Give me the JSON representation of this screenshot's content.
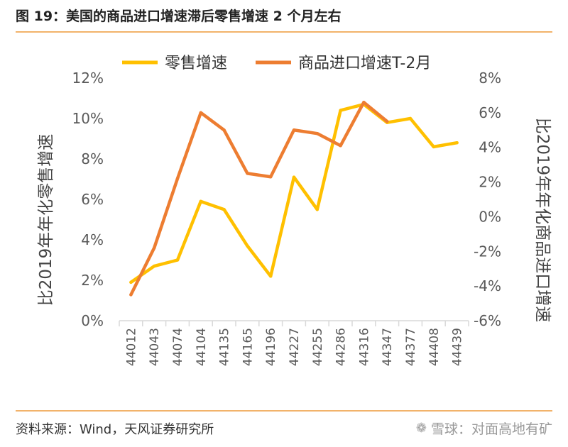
{
  "figure": {
    "title": "图 19：美国的商品进口增速滞后零售增速 2 个月左右",
    "source": "资料来源：Wind，天风证券研究所",
    "watermark_text": "雪球：对面高地有矿",
    "watermark_icon": "snowball-logo-icon"
  },
  "chart_data": {
    "type": "line",
    "categories": [
      "44012",
      "44043",
      "44074",
      "44104",
      "44135",
      "44165",
      "44196",
      "44227",
      "44255",
      "44286",
      "44316",
      "44347",
      "44377",
      "44408",
      "44439"
    ],
    "left_axis": {
      "label": "比2019年年化零售增速",
      "ylim": [
        0,
        12
      ],
      "ticks": [
        "12%",
        "10%",
        "8%",
        "6%",
        "4%",
        "2%",
        "0%"
      ],
      "tick_values": [
        12,
        10,
        8,
        6,
        4,
        2,
        0
      ]
    },
    "right_axis": {
      "label": "比2019年年化商品进口增速",
      "ylim": [
        -6,
        8
      ],
      "ticks": [
        "8%",
        "6%",
        "4%",
        "2%",
        "0%",
        "-2%",
        "-4%",
        "-6%"
      ],
      "tick_values": [
        8,
        6,
        4,
        2,
        0,
        -2,
        -4,
        -6
      ]
    },
    "series": [
      {
        "name": "零售增速",
        "axis": "left",
        "color": "#ffc000",
        "values": [
          1.9,
          2.7,
          3.0,
          5.9,
          5.5,
          3.7,
          2.2,
          7.1,
          5.5,
          10.4,
          10.7,
          9.8,
          10.0,
          8.6,
          8.8
        ]
      },
      {
        "name": "商品进口增速T-2月",
        "axis": "right",
        "color": "#ed7d31",
        "values": [
          -4.5,
          -1.8,
          2.2,
          6.0,
          5.0,
          2.5,
          2.3,
          5.0,
          4.8,
          4.1,
          6.6,
          5.5,
          null,
          null,
          null
        ]
      }
    ],
    "legend": [
      "零售增速",
      "商品进口增速T-2月"
    ],
    "legend_position": "top"
  }
}
